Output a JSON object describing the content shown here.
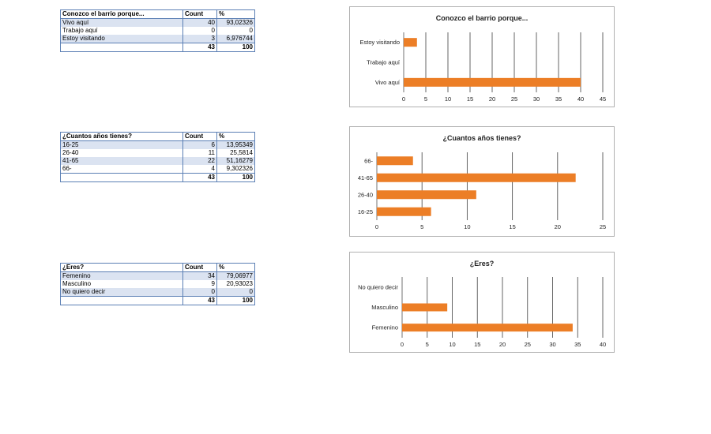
{
  "tables": [
    {
      "header": [
        "Conozco el barrio porque...",
        "Count",
        "%"
      ],
      "rows": [
        {
          "label": "Vivo aquí",
          "count": "40",
          "pct": "93,02326"
        },
        {
          "label": "Trabajo aquí",
          "count": "0",
          "pct": "0"
        },
        {
          "label": "Estoy visitando",
          "count": "3",
          "pct": "6,976744"
        }
      ],
      "total": {
        "count": "43",
        "pct": "100"
      }
    },
    {
      "header": [
        "¿Cuantos años tienes?",
        "Count",
        "%"
      ],
      "rows": [
        {
          "label": "16-25",
          "count": "6",
          "pct": "13,95349"
        },
        {
          "label": "26-40",
          "count": "11",
          "pct": "25,5814"
        },
        {
          "label": "41-65",
          "count": "22",
          "pct": "51,16279"
        },
        {
          "label": "66-",
          "count": "4",
          "pct": "9,302326"
        }
      ],
      "total": {
        "count": "43",
        "pct": "100"
      }
    },
    {
      "header": [
        "¿Eres?",
        "Count",
        "%"
      ],
      "rows": [
        {
          "label": "Femenino",
          "count": "34",
          "pct": "79,06977"
        },
        {
          "label": "Masculino",
          "count": "9",
          "pct": "20,93023"
        },
        {
          "label": "No quiero decir",
          "count": "0",
          "pct": "0"
        }
      ],
      "total": {
        "count": "43",
        "pct": "100"
      }
    }
  ],
  "chart_data": [
    {
      "type": "bar",
      "orientation": "horizontal",
      "title": "Conozco el barrio porque...",
      "categories": [
        "Vivo aquí",
        "Trabajo aquí",
        "Estoy visitando"
      ],
      "values": [
        40,
        0,
        3
      ],
      "xlim": [
        0,
        45
      ],
      "xticks": [
        0,
        5,
        10,
        15,
        20,
        25,
        30,
        35,
        40,
        45
      ],
      "grid": true,
      "legend": "none",
      "bar_color": "#ec7e26"
    },
    {
      "type": "bar",
      "orientation": "horizontal",
      "title": "¿Cuantos años tienes?",
      "categories": [
        "16-25",
        "26-40",
        "41-65",
        "66-"
      ],
      "values": [
        6,
        11,
        22,
        4
      ],
      "xlim": [
        0,
        25
      ],
      "xticks": [
        0,
        5,
        10,
        15,
        20,
        25
      ],
      "grid": true,
      "legend": "none",
      "bar_color": "#ec7e26"
    },
    {
      "type": "bar",
      "orientation": "horizontal",
      "title": "¿Eres?",
      "categories": [
        "Femenino",
        "Masculino",
        "No quiero decir"
      ],
      "values": [
        34,
        9,
        0
      ],
      "xlim": [
        0,
        40
      ],
      "xticks": [
        0,
        5,
        10,
        15,
        20,
        25,
        30,
        35,
        40
      ],
      "grid": true,
      "legend": "none",
      "bar_color": "#ec7e26"
    }
  ]
}
